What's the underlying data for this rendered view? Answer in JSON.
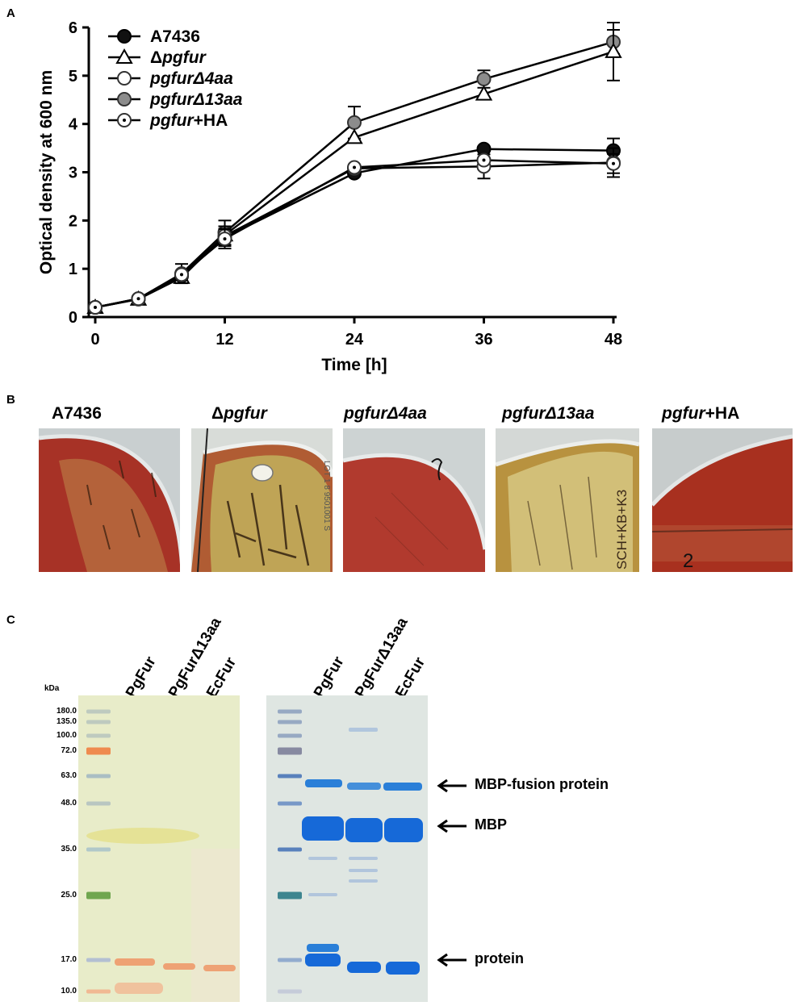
{
  "panel_labels": {
    "a": "A",
    "b": "B",
    "c": "C"
  },
  "chart_data": {
    "type": "line",
    "xlabel": "Time [h]",
    "ylabel": "Optical density at 600 nm",
    "xticks": [
      "0",
      "12",
      "24",
      "36",
      "48"
    ],
    "yticks": [
      "0",
      "1",
      "2",
      "3",
      "4",
      "5",
      "6"
    ],
    "xlim": [
      0,
      48
    ],
    "ylim": [
      0,
      6
    ],
    "x": [
      0,
      4,
      8,
      12,
      24,
      36,
      48
    ],
    "legend_position": "top-left",
    "series": [
      {
        "name": "A7436",
        "name_parts": [
          "A7436",
          ""
        ],
        "marker": "filled-circle",
        "color": "#111111",
        "values": [
          0.2,
          0.38,
          0.85,
          1.65,
          2.98,
          3.48,
          3.45
        ],
        "errors": [
          0.02,
          0.03,
          0.12,
          0.18,
          0.05,
          0.1,
          0.25
        ]
      },
      {
        "name": "Δpgfur",
        "name_parts": [
          "Δ",
          "pgfur",
          ""
        ],
        "marker": "open-triangle",
        "color": "#ffffff",
        "values": [
          0.2,
          0.37,
          0.82,
          1.7,
          3.72,
          4.62,
          5.5
        ],
        "errors": [
          0.02,
          0.05,
          0.1,
          0.15,
          0.12,
          0.12,
          0.6
        ]
      },
      {
        "name": "pgfurΔ4aa",
        "name_parts": [
          "",
          "pgfurΔ4aa",
          ""
        ],
        "marker": "open-circle",
        "color": "#ffffff",
        "values": [
          0.2,
          0.37,
          0.88,
          1.68,
          3.08,
          3.12,
          3.2
        ],
        "errors": [
          0.02,
          0.03,
          0.1,
          0.2,
          0.08,
          0.25,
          0.3
        ]
      },
      {
        "name": "pgfurΔ13aa",
        "name_parts": [
          "",
          "pgfurΔ13aa",
          ""
        ],
        "marker": "gray-circle",
        "color": "#8c8c8c",
        "values": [
          0.2,
          0.38,
          0.9,
          1.75,
          4.03,
          4.93,
          5.7
        ],
        "errors": [
          0.02,
          0.03,
          0.2,
          0.25,
          0.33,
          0.18,
          0.25
        ]
      },
      {
        "name": "pgfur+HA",
        "name_parts": [
          "",
          "pgfur",
          "+HA"
        ],
        "marker": "dot-circle",
        "color": "#ffffff",
        "values": [
          0.2,
          0.38,
          0.88,
          1.62,
          3.1,
          3.25,
          3.18
        ],
        "errors": [
          0.02,
          0.03,
          0.1,
          0.2,
          0.05,
          0.15,
          0.2
        ]
      }
    ]
  },
  "plates": [
    {
      "pre": "A7436",
      "it": "",
      "post": ""
    },
    {
      "pre": "Δ",
      "it": "pgfur",
      "post": ""
    },
    {
      "pre": "",
      "it": "pgfurΔ4aa",
      "post": ""
    },
    {
      "pre": "",
      "it": "pgfurΔ13aa",
      "post": ""
    },
    {
      "pre": "",
      "it": "pgfur",
      "post": "+HA"
    }
  ],
  "plate_markings": {
    "second": "LOT 1 8 9501001 S",
    "fourth": "SCH+KB+K3",
    "fifth": "2"
  },
  "gel": {
    "kda_unit": "kDa",
    "ladder": [
      "180.0",
      "135.0",
      "100.0",
      "72.0",
      "63.0",
      "48.0",
      "35.0",
      "25.0",
      "17.0",
      "10.0"
    ],
    "lanes": [
      "PgFur",
      "PgFurΔ13aa",
      "EcFur"
    ],
    "arrows": [
      "MBP-fusion protein",
      "MBP",
      "protein"
    ]
  },
  "colors": {
    "gel_left_bg": "#e9edc8",
    "gel_right_bg": "#dfe7e3",
    "coomassie": "#1f6ed8",
    "agar": "#9a2a1e"
  }
}
